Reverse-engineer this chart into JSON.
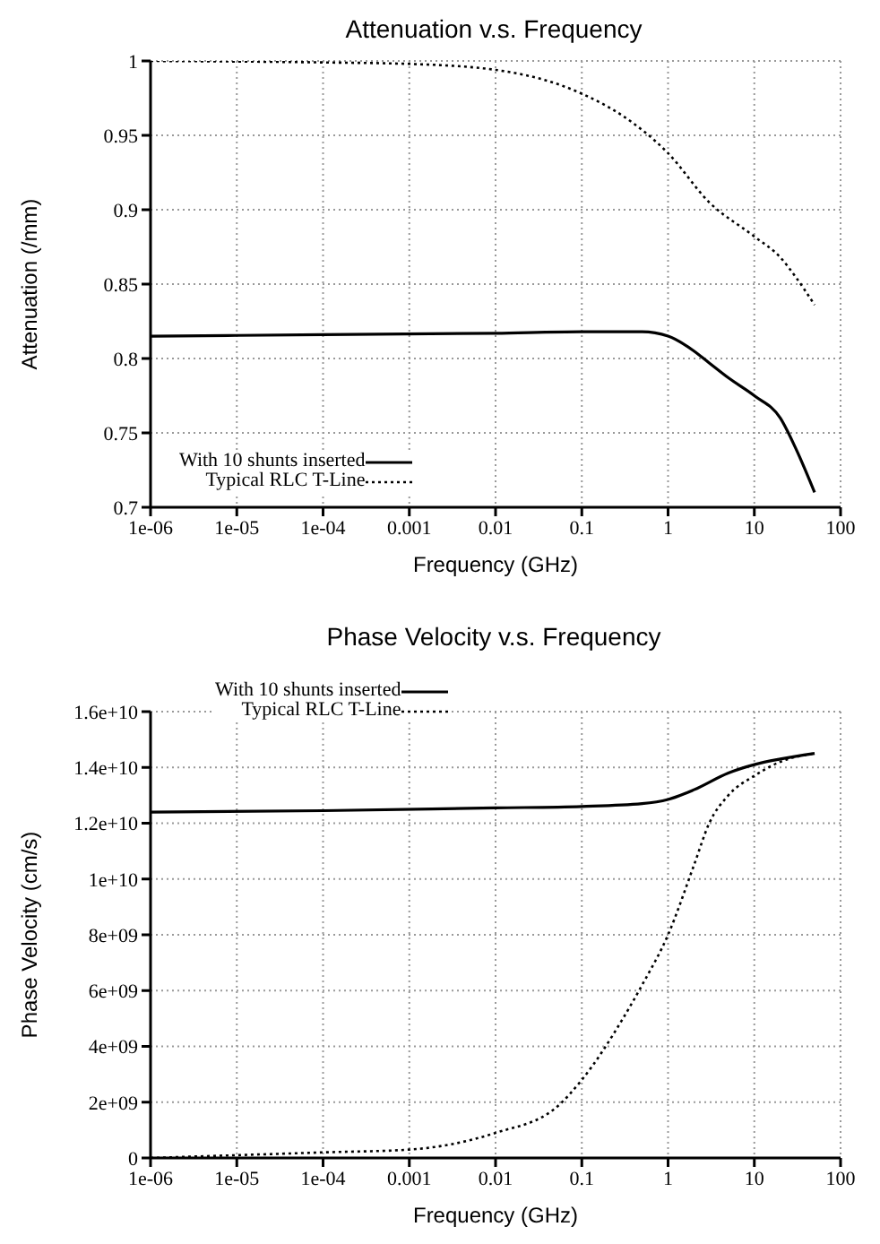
{
  "chart_data": [
    {
      "type": "line",
      "title": "Attenuation v.s. Frequency",
      "xlabel": "Frequency (GHz)",
      "ylabel": "Attenuation (/mm)",
      "log": "x",
      "grid": true,
      "legend": "bottom left",
      "marker": "none",
      "xlim": [
        1e-06,
        100
      ],
      "xticks": [
        {
          "value": 1e-06,
          "label": "1e-06"
        },
        {
          "value": 1e-05,
          "label": "1e-05"
        },
        {
          "value": 0.0001,
          "label": "1e-04"
        },
        0.001,
        0.01,
        0.1,
        1,
        10,
        100
      ],
      "ylim": [
        0.7,
        1
      ],
      "yticks": [
        0.7,
        0.75,
        0.8,
        0.85,
        0.9,
        0.95,
        1
      ],
      "series": [
        {
          "name": "With 10 shunts inserted",
          "color": "#000000",
          "line_style": "solid",
          "x": [
            1e-06,
            0.0001,
            0.01,
            0.1,
            0.5,
            1,
            2,
            3,
            5,
            10,
            20,
            30,
            50
          ],
          "values": [
            0.815,
            0.816,
            0.817,
            0.818,
            0.818,
            0.815,
            0.805,
            0.797,
            0.787,
            0.775,
            0.76,
            0.74,
            0.71
          ]
        },
        {
          "name": "Typical RLC T-Line",
          "color": "#000000",
          "line_style": "dotted",
          "x": [
            1e-06,
            0.0001,
            0.001,
            0.01,
            0.1,
            0.3,
            1,
            3,
            10,
            20,
            30,
            50
          ],
          "values": [
            1.0,
            0.999,
            0.998,
            0.994,
            0.978,
            0.963,
            0.938,
            0.905,
            0.882,
            0.868,
            0.855,
            0.836
          ]
        }
      ]
    },
    {
      "type": "line",
      "title": "Phase Velocity v.s. Frequency",
      "xlabel": "Frequency (GHz)",
      "ylabel": "Phase Velocity (cm/s)",
      "log": "x",
      "grid": true,
      "legend": "top left",
      "marker": "none",
      "xlim": [
        1e-06,
        100
      ],
      "xticks": [
        {
          "value": 1e-06,
          "label": "1e-06"
        },
        {
          "value": 1e-05,
          "label": "1e-05"
        },
        {
          "value": 0.0001,
          "label": "1e-04"
        },
        0.001,
        0.01,
        0.1,
        1,
        10,
        100
      ],
      "ylim": [
        0,
        16000000000
      ],
      "yticks": [
        0,
        {
          "value": 2000000000,
          "label": "2e+09"
        },
        {
          "value": 4000000000,
          "label": "4e+09"
        },
        {
          "value": 6000000000,
          "label": "6e+09"
        },
        {
          "value": 8000000000,
          "label": "8e+09"
        },
        {
          "value": 10000000000,
          "label": "1e+10"
        },
        {
          "value": 12000000000,
          "label": "1.2e+10"
        },
        {
          "value": 14000000000,
          "label": "1.4e+10"
        },
        {
          "value": 16000000000,
          "label": "1.6e+10"
        }
      ],
      "series": [
        {
          "name": "With 10 shunts inserted",
          "color": "#000000",
          "line_style": "solid",
          "x": [
            1e-06,
            0.0001,
            0.01,
            0.1,
            0.5,
            1,
            2,
            5,
            10,
            20,
            50
          ],
          "values": [
            12400000000,
            12450000000,
            12550000000,
            12600000000,
            12700000000,
            12850000000,
            13200000000,
            13800000000,
            14100000000,
            14300000000,
            14500000000
          ]
        },
        {
          "name": "Typical RLC T-Line",
          "color": "#000000",
          "line_style": "dotted",
          "x": [
            1e-06,
            1e-05,
            0.0001,
            0.001,
            0.01,
            0.05,
            0.1,
            0.3,
            0.5,
            1,
            2,
            3,
            5,
            10,
            20,
            50
          ],
          "values": [
            0,
            100000000,
            200000000,
            300000000,
            900000000,
            1800000000,
            2800000000,
            5000000000,
            6200000000,
            8000000000,
            10500000000,
            12000000000,
            13000000000,
            13700000000,
            14200000000,
            14500000000
          ]
        }
      ]
    }
  ]
}
